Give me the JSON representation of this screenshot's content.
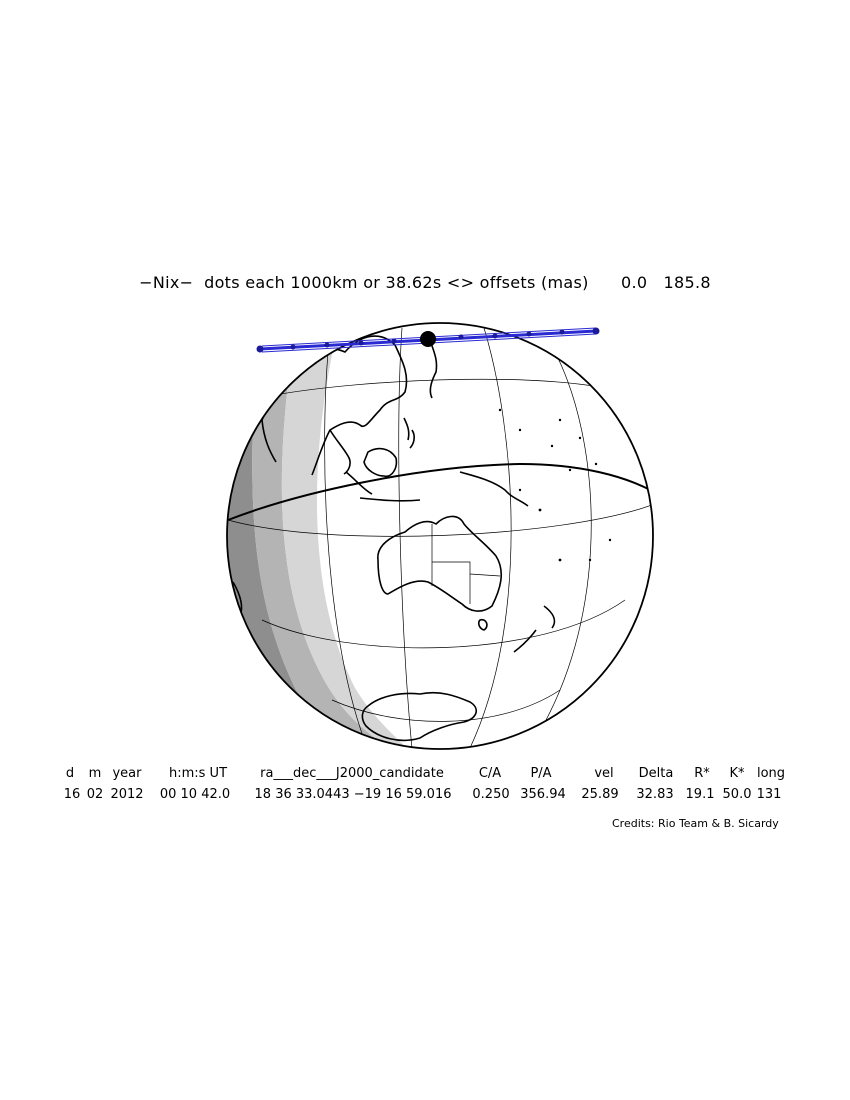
{
  "plot": {
    "title": "−Nix−  dots each 1000km or 38.62s <> offsets (mas)      0.0   185.8",
    "credits": "Credits: Rio Team & B. Sicardy"
  },
  "table": {
    "headers": [
      "d",
      "m",
      "year",
      "h:m:s UT",
      "ra___dec___J2000_candidate",
      "C/A",
      "P/A",
      "vel",
      "Delta",
      "R*",
      "K*",
      "long"
    ],
    "values": [
      "16",
      "02",
      "2012",
      "00 10 42.0",
      "18 36 33.0443 −19 16 59.016",
      "0.250",
      "356.94",
      "25.89",
      "32.83",
      "19.1",
      "50.0",
      "131"
    ]
  },
  "colors": {
    "shadow_track": "#2a2ad2",
    "night": "#8e8e8e",
    "twilight": "#c8c8c8",
    "coastline": "#000000"
  }
}
